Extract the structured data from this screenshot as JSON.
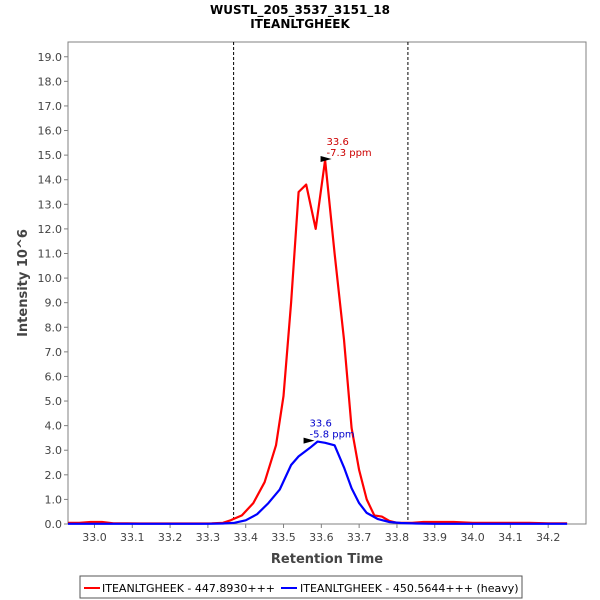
{
  "chart_data": {
    "type": "line",
    "title": "WUSTL_205_3537_3151_18",
    "subtitle": "ITEANLTGHEEK",
    "xlabel": "Retention Time",
    "ylabel": "Intensity 10^6",
    "xlim": [
      32.93,
      34.3
    ],
    "ylim": [
      0,
      19.6
    ],
    "x_ticks": [
      "33.0",
      "33.1",
      "33.2",
      "33.3",
      "33.4",
      "33.5",
      "33.6",
      "33.7",
      "33.8",
      "33.9",
      "34.0",
      "34.1",
      "34.2"
    ],
    "y_ticks": [
      "0.0",
      "1.0",
      "2.0",
      "3.0",
      "4.0",
      "5.0",
      "6.0",
      "7.0",
      "8.0",
      "9.0",
      "10.0",
      "11.0",
      "12.0",
      "13.0",
      "14.0",
      "15.0",
      "16.0",
      "17.0",
      "18.0",
      "19.0"
    ],
    "boundaries": [
      33.368,
      33.829
    ],
    "series": [
      {
        "name": "ITEANLTGHEEK - 447.8930+++",
        "color": "#ff0000",
        "x": [
          32.93,
          32.96,
          32.99,
          33.02,
          33.05,
          33.08,
          33.12,
          33.16,
          33.2,
          33.24,
          33.28,
          33.31,
          33.34,
          33.36,
          33.39,
          33.42,
          33.45,
          33.48,
          33.5,
          33.52,
          33.54,
          33.56,
          33.585,
          33.61,
          33.635,
          33.66,
          33.68,
          33.7,
          33.72,
          33.74,
          33.76,
          33.78,
          33.8,
          33.82,
          33.84,
          33.87,
          33.9,
          33.95,
          34.0,
          34.05,
          34.1,
          34.15,
          34.2,
          34.25
        ],
        "y": [
          0.05,
          0.05,
          0.08,
          0.08,
          0.03,
          0.03,
          0.02,
          0.02,
          0.02,
          0.02,
          0.02,
          0.03,
          0.05,
          0.15,
          0.35,
          0.85,
          1.7,
          3.2,
          5.2,
          9.0,
          13.5,
          13.8,
          12.0,
          14.8,
          11.0,
          7.5,
          3.9,
          2.2,
          1.0,
          0.35,
          0.3,
          0.12,
          0.05,
          0.05,
          0.05,
          0.08,
          0.08,
          0.08,
          0.05,
          0.05,
          0.05,
          0.05,
          0.03,
          0.03
        ]
      },
      {
        "name": "ITEANLTGHEEK - 450.5644+++ (heavy)",
        "color": "#0000ff",
        "x": [
          32.93,
          33.0,
          33.1,
          33.2,
          33.3,
          33.34,
          33.37,
          33.4,
          33.43,
          33.46,
          33.49,
          33.52,
          33.54,
          33.57,
          33.59,
          33.61,
          33.635,
          33.66,
          33.68,
          33.7,
          33.72,
          33.75,
          33.78,
          33.81,
          33.85,
          33.9,
          34.0,
          34.1,
          34.2,
          34.25
        ],
        "y": [
          0.01,
          0.01,
          0.01,
          0.01,
          0.01,
          0.02,
          0.05,
          0.15,
          0.4,
          0.85,
          1.4,
          2.4,
          2.75,
          3.1,
          3.35,
          3.3,
          3.2,
          2.3,
          1.45,
          0.85,
          0.45,
          0.2,
          0.08,
          0.04,
          0.02,
          0.01,
          0.01,
          0.01,
          0.01,
          0.01
        ]
      }
    ],
    "annotations": [
      {
        "x": 33.635,
        "y": 14.8,
        "line1": "33.6",
        "line2": "-7.3 ppm",
        "color": "#cc0000"
      },
      {
        "x": 33.59,
        "y": 3.35,
        "line1": "33.6",
        "line2": "-5.8 ppm",
        "color": "#0000cc"
      }
    ]
  },
  "legend": {
    "items": [
      {
        "label": "ITEANLTGHEEK - 447.8930+++",
        "color": "#ff0000"
      },
      {
        "label": "ITEANLTGHEEK - 450.5644+++ (heavy)",
        "color": "#0000ff"
      }
    ]
  }
}
